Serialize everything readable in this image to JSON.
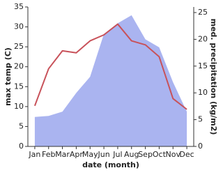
{
  "chart_data": {
    "type": "area-line",
    "x_label": "date (month)",
    "y_label": "max temp (C)",
    "y2_label": "med. precipitation (kg/m2)",
    "categories": [
      "Jan",
      "Feb",
      "Mar",
      "Apr",
      "May",
      "Jun",
      "Jul",
      "Aug",
      "Sep",
      "Oct",
      "Nov",
      "Dec"
    ],
    "ylim": [
      0,
      35
    ],
    "yticks": [
      0,
      5,
      10,
      15,
      20,
      25,
      30,
      35
    ],
    "y2lim": [
      0,
      26.04
    ],
    "y2ticks": [
      0,
      5,
      10,
      15,
      20,
      25
    ],
    "series": [
      {
        "name": "med. precipitation",
        "type": "area",
        "axis": "y2",
        "color": "#aab4f0",
        "values": [
          5.5,
          5.7,
          6.5,
          10,
          13,
          21,
          23,
          24.5,
          20,
          18.5,
          12,
          6.5
        ]
      },
      {
        "name": "max temp",
        "type": "line",
        "axis": "y",
        "color": "#c8525a",
        "values": [
          10.2,
          19.5,
          24,
          23.5,
          26.5,
          28,
          30.7,
          26.5,
          25.5,
          22.5,
          12,
          9.3
        ]
      }
    ]
  }
}
